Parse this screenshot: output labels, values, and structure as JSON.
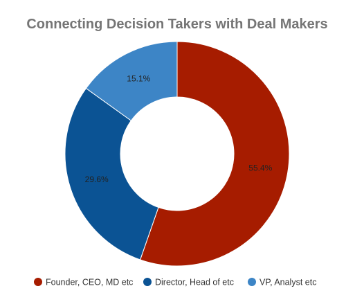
{
  "chart_data": {
    "type": "pie",
    "title": "Connecting Decision Takers with Deal Makers",
    "categories": [
      "Founder, CEO, MD etc",
      "Director, Head of etc",
      "VP, Analyst etc"
    ],
    "values": [
      55.4,
      29.6,
      15.1
    ],
    "value_labels": [
      "55.4%",
      "29.6%",
      "15.1%"
    ],
    "colors": [
      "#A61C00",
      "#0B5394",
      "#3D85C6"
    ],
    "donut": true,
    "legend_position": "bottom"
  }
}
